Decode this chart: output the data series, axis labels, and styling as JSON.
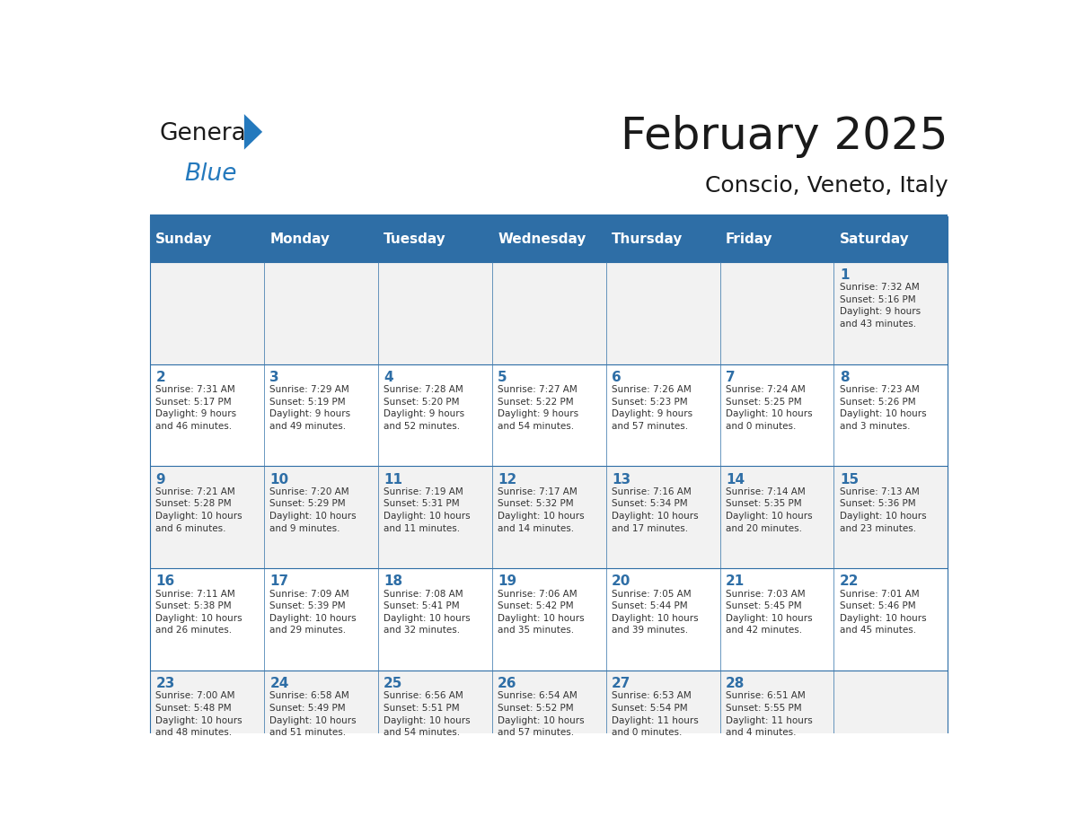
{
  "title": "February 2025",
  "subtitle": "Conscio, Veneto, Italy",
  "days_of_week": [
    "Sunday",
    "Monday",
    "Tuesday",
    "Wednesday",
    "Thursday",
    "Friday",
    "Saturday"
  ],
  "header_bg": "#2E6EA6",
  "header_text": "#FFFFFF",
  "cell_bg_odd": "#F2F2F2",
  "cell_bg_even": "#FFFFFF",
  "cell_border": "#2E6EA6",
  "day_num_color": "#2E6EA6",
  "text_color": "#333333",
  "line_color": "#2E6EA6",
  "weeks": [
    [
      {
        "day": null,
        "info": ""
      },
      {
        "day": null,
        "info": ""
      },
      {
        "day": null,
        "info": ""
      },
      {
        "day": null,
        "info": ""
      },
      {
        "day": null,
        "info": ""
      },
      {
        "day": null,
        "info": ""
      },
      {
        "day": 1,
        "info": "Sunrise: 7:32 AM\nSunset: 5:16 PM\nDaylight: 9 hours\nand 43 minutes."
      }
    ],
    [
      {
        "day": 2,
        "info": "Sunrise: 7:31 AM\nSunset: 5:17 PM\nDaylight: 9 hours\nand 46 minutes."
      },
      {
        "day": 3,
        "info": "Sunrise: 7:29 AM\nSunset: 5:19 PM\nDaylight: 9 hours\nand 49 minutes."
      },
      {
        "day": 4,
        "info": "Sunrise: 7:28 AM\nSunset: 5:20 PM\nDaylight: 9 hours\nand 52 minutes."
      },
      {
        "day": 5,
        "info": "Sunrise: 7:27 AM\nSunset: 5:22 PM\nDaylight: 9 hours\nand 54 minutes."
      },
      {
        "day": 6,
        "info": "Sunrise: 7:26 AM\nSunset: 5:23 PM\nDaylight: 9 hours\nand 57 minutes."
      },
      {
        "day": 7,
        "info": "Sunrise: 7:24 AM\nSunset: 5:25 PM\nDaylight: 10 hours\nand 0 minutes."
      },
      {
        "day": 8,
        "info": "Sunrise: 7:23 AM\nSunset: 5:26 PM\nDaylight: 10 hours\nand 3 minutes."
      }
    ],
    [
      {
        "day": 9,
        "info": "Sunrise: 7:21 AM\nSunset: 5:28 PM\nDaylight: 10 hours\nand 6 minutes."
      },
      {
        "day": 10,
        "info": "Sunrise: 7:20 AM\nSunset: 5:29 PM\nDaylight: 10 hours\nand 9 minutes."
      },
      {
        "day": 11,
        "info": "Sunrise: 7:19 AM\nSunset: 5:31 PM\nDaylight: 10 hours\nand 11 minutes."
      },
      {
        "day": 12,
        "info": "Sunrise: 7:17 AM\nSunset: 5:32 PM\nDaylight: 10 hours\nand 14 minutes."
      },
      {
        "day": 13,
        "info": "Sunrise: 7:16 AM\nSunset: 5:34 PM\nDaylight: 10 hours\nand 17 minutes."
      },
      {
        "day": 14,
        "info": "Sunrise: 7:14 AM\nSunset: 5:35 PM\nDaylight: 10 hours\nand 20 minutes."
      },
      {
        "day": 15,
        "info": "Sunrise: 7:13 AM\nSunset: 5:36 PM\nDaylight: 10 hours\nand 23 minutes."
      }
    ],
    [
      {
        "day": 16,
        "info": "Sunrise: 7:11 AM\nSunset: 5:38 PM\nDaylight: 10 hours\nand 26 minutes."
      },
      {
        "day": 17,
        "info": "Sunrise: 7:09 AM\nSunset: 5:39 PM\nDaylight: 10 hours\nand 29 minutes."
      },
      {
        "day": 18,
        "info": "Sunrise: 7:08 AM\nSunset: 5:41 PM\nDaylight: 10 hours\nand 32 minutes."
      },
      {
        "day": 19,
        "info": "Sunrise: 7:06 AM\nSunset: 5:42 PM\nDaylight: 10 hours\nand 35 minutes."
      },
      {
        "day": 20,
        "info": "Sunrise: 7:05 AM\nSunset: 5:44 PM\nDaylight: 10 hours\nand 39 minutes."
      },
      {
        "day": 21,
        "info": "Sunrise: 7:03 AM\nSunset: 5:45 PM\nDaylight: 10 hours\nand 42 minutes."
      },
      {
        "day": 22,
        "info": "Sunrise: 7:01 AM\nSunset: 5:46 PM\nDaylight: 10 hours\nand 45 minutes."
      }
    ],
    [
      {
        "day": 23,
        "info": "Sunrise: 7:00 AM\nSunset: 5:48 PM\nDaylight: 10 hours\nand 48 minutes."
      },
      {
        "day": 24,
        "info": "Sunrise: 6:58 AM\nSunset: 5:49 PM\nDaylight: 10 hours\nand 51 minutes."
      },
      {
        "day": 25,
        "info": "Sunrise: 6:56 AM\nSunset: 5:51 PM\nDaylight: 10 hours\nand 54 minutes."
      },
      {
        "day": 26,
        "info": "Sunrise: 6:54 AM\nSunset: 5:52 PM\nDaylight: 10 hours\nand 57 minutes."
      },
      {
        "day": 27,
        "info": "Sunrise: 6:53 AM\nSunset: 5:54 PM\nDaylight: 11 hours\nand 0 minutes."
      },
      {
        "day": 28,
        "info": "Sunrise: 6:51 AM\nSunset: 5:55 PM\nDaylight: 11 hours\nand 4 minutes."
      },
      {
        "day": null,
        "info": ""
      }
    ]
  ],
  "logo_color_general": "#1a1a1a",
  "logo_color_blue": "#2479BD",
  "logo_triangle_color": "#2479BD"
}
